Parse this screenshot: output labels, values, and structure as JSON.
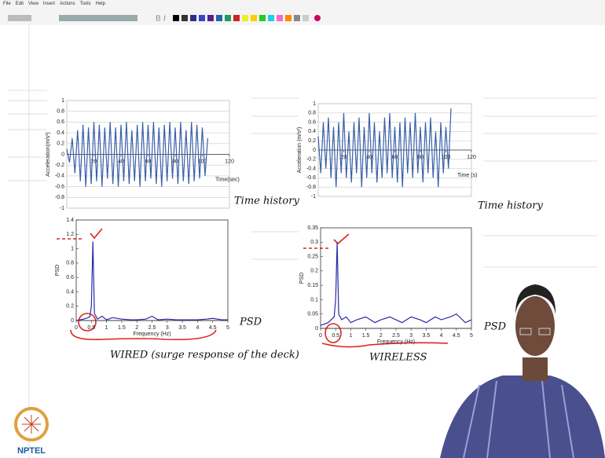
{
  "menu": [
    "File",
    "Edit",
    "View",
    "Insert",
    "Actions",
    "Tools",
    "Help"
  ],
  "annotations": {
    "time_history_left": "Time history",
    "time_history_right": "Time history",
    "psd_left": "PSD",
    "psd_right": "PSD",
    "wired": "WIRED (surge response of the deck)",
    "wireless": "WIRELESS"
  },
  "logo": "NPTEL",
  "chart_data": [
    {
      "type": "line",
      "xlabel": "Time(sec)",
      "ylabel": "Acceleration(m/s²)",
      "grid": true,
      "xlim": [
        0,
        120
      ],
      "xticks": [
        20,
        40,
        60,
        80,
        100,
        120
      ],
      "ylim": [
        -1,
        1
      ],
      "yticks": [
        1,
        0.8,
        0.6,
        0.4,
        0.2,
        0,
        -0.2,
        -0.4,
        -0.6,
        -0.8,
        -1
      ],
      "x": [
        0,
        2,
        4,
        6,
        8,
        10,
        12,
        14,
        16,
        18,
        20,
        22,
        24,
        26,
        28,
        30,
        32,
        34,
        36,
        38,
        40,
        42,
        44,
        46,
        48,
        50,
        52,
        54,
        56,
        58,
        60,
        62,
        64,
        66,
        68,
        70,
        72,
        74,
        76,
        78,
        80,
        82,
        84,
        86,
        88,
        90,
        92,
        94,
        96,
        98,
        100,
        102,
        104
      ],
      "series": [
        {
          "color": "#3a5fa8",
          "values": [
            0.1,
            -0.15,
            0.3,
            -0.35,
            0.45,
            -0.5,
            0.55,
            -0.6,
            0.5,
            -0.55,
            0.6,
            -0.5,
            0.55,
            -0.6,
            0.5,
            -0.45,
            0.6,
            -0.55,
            0.5,
            -0.6,
            0.55,
            -0.5,
            0.6,
            -0.55,
            0.45,
            -0.5,
            0.55,
            -0.6,
            0.6,
            -0.5,
            0.55,
            -0.45,
            0.6,
            -0.55,
            0.5,
            -0.6,
            0.55,
            -0.5,
            0.6,
            -0.45,
            0.5,
            -0.55,
            0.6,
            -0.5,
            0.45,
            -0.55,
            0.6,
            -0.5,
            0.55,
            -0.45,
            0.5,
            -0.4,
            0.3
          ]
        }
      ]
    },
    {
      "type": "line",
      "xlabel": "Time (s)",
      "ylabel": "Acceleration (m/s²)",
      "grid": true,
      "xlim": [
        0,
        120
      ],
      "xticks": [
        20,
        40,
        60,
        80,
        100,
        120
      ],
      "ylim": [
        -1,
        1
      ],
      "yticks": [
        1,
        0.8,
        0.6,
        0.4,
        0.2,
        0,
        -0.2,
        -0.4,
        -0.6,
        -0.8,
        -1
      ],
      "x": [
        0,
        2,
        4,
        6,
        8,
        10,
        12,
        14,
        16,
        18,
        20,
        22,
        24,
        26,
        28,
        30,
        32,
        34,
        36,
        38,
        40,
        42,
        44,
        46,
        48,
        50,
        52,
        54,
        56,
        58,
        60,
        62,
        64,
        66,
        68,
        70,
        72,
        74,
        76,
        78,
        80,
        82,
        84,
        86,
        88,
        90,
        92,
        94,
        96,
        98,
        100,
        102,
        104
      ],
      "series": [
        {
          "color": "#3a5fa8",
          "values": [
            0.3,
            -0.5,
            0.6,
            -0.4,
            0.7,
            -0.6,
            0.5,
            -0.8,
            0.6,
            -0.5,
            0.8,
            -0.6,
            0.4,
            -0.7,
            0.6,
            -0.5,
            0.7,
            -0.8,
            0.5,
            -0.6,
            0.8,
            -0.5,
            0.6,
            -0.7,
            0.4,
            -0.6,
            0.7,
            -0.5,
            0.8,
            -0.6,
            0.5,
            -0.7,
            0.6,
            -0.8,
            0.7,
            -0.5,
            0.6,
            -0.6,
            0.8,
            -0.5,
            0.5,
            -0.7,
            0.6,
            -0.5,
            0.7,
            -0.6,
            0.4,
            -0.8,
            0.6,
            -0.5,
            0.5,
            -0.4,
            0.9
          ]
        }
      ]
    },
    {
      "type": "line",
      "xlabel": "Frequency (Hz)",
      "ylabel": "PSD",
      "grid": false,
      "xlim": [
        0,
        5
      ],
      "xticks": [
        0,
        0.5,
        1,
        1.5,
        2,
        2.5,
        3,
        3.5,
        4,
        4.5,
        5
      ],
      "ylim": [
        0,
        1.4
      ],
      "yticks": [
        0,
        0.2,
        0.4,
        0.6,
        0.8,
        1,
        1.2,
        1.4
      ],
      "x": [
        0,
        0.25,
        0.45,
        0.5,
        0.55,
        0.6,
        0.7,
        0.85,
        1,
        1.2,
        1.5,
        1.8,
        2,
        2.3,
        2.5,
        2.7,
        3,
        3.3,
        3.5,
        3.8,
        4,
        4.3,
        4.5,
        4.8,
        5
      ],
      "series": [
        {
          "color": "#2a2aa8",
          "values": [
            0,
            0.02,
            0.05,
            0.2,
            1.1,
            0.1,
            0.02,
            0.06,
            0.01,
            0.04,
            0.02,
            0.01,
            0.01,
            0.02,
            0.06,
            0.01,
            0.02,
            0.01,
            0.01,
            0.01,
            0.01,
            0.02,
            0.03,
            0.01,
            0.01
          ]
        }
      ]
    },
    {
      "type": "line",
      "xlabel": "Frequency (Hz)",
      "ylabel": "PSD",
      "grid": false,
      "xlim": [
        0,
        5
      ],
      "xticks": [
        0,
        0.5,
        1,
        1.5,
        2,
        2.5,
        3,
        3.5,
        4,
        4.5,
        5
      ],
      "ylim": [
        0,
        0.35
      ],
      "yticks": [
        0,
        0.05,
        0.1,
        0.15,
        0.2,
        0.25,
        0.3,
        0.35
      ],
      "x": [
        0,
        0.25,
        0.45,
        0.5,
        0.55,
        0.6,
        0.7,
        0.85,
        1,
        1.2,
        1.5,
        1.8,
        2,
        2.3,
        2.5,
        2.7,
        3,
        3.3,
        3.5,
        3.8,
        4,
        4.3,
        4.5,
        4.8,
        5
      ],
      "series": [
        {
          "color": "#2a2aa8",
          "values": [
            0.01,
            0.02,
            0.04,
            0.1,
            0.3,
            0.05,
            0.03,
            0.04,
            0.02,
            0.03,
            0.04,
            0.02,
            0.03,
            0.04,
            0.03,
            0.02,
            0.04,
            0.03,
            0.02,
            0.04,
            0.03,
            0.04,
            0.05,
            0.02,
            0.03
          ]
        }
      ]
    }
  ]
}
